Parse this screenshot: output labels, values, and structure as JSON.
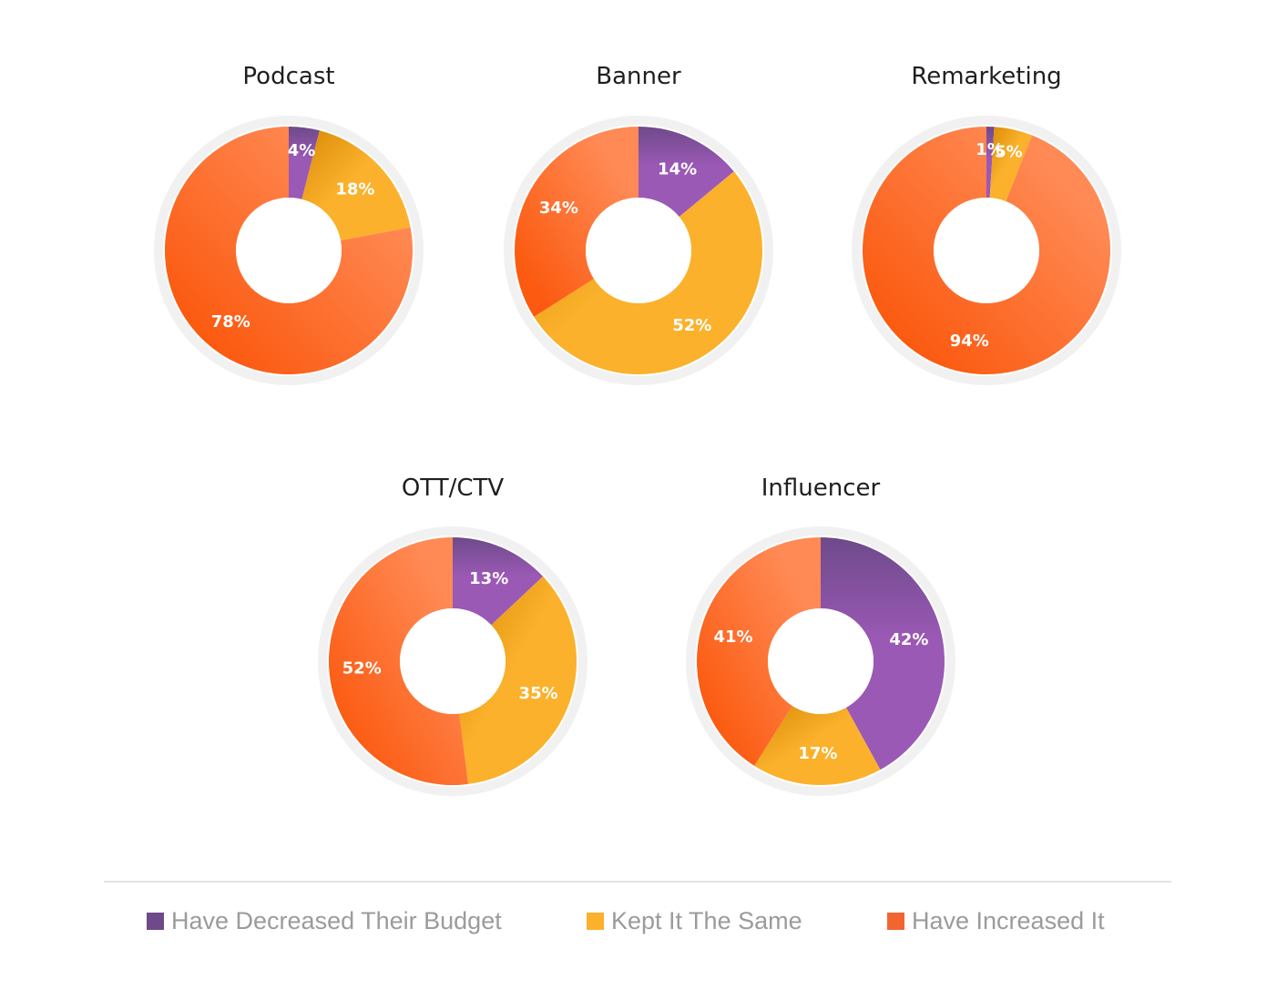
{
  "chart_data": [
    {
      "type": "pie",
      "title": "Podcast",
      "labels": [
        "Have Decreased Their Budget",
        "Kept It The Same",
        "Have Increased It"
      ],
      "values": [
        4,
        18,
        78
      ]
    },
    {
      "type": "pie",
      "title": "Banner",
      "labels": [
        "Have Decreased Their Budget",
        "Kept It The Same",
        "Have Increased It"
      ],
      "values": [
        14,
        52,
        34
      ]
    },
    {
      "type": "pie",
      "title": "Remarketing",
      "labels": [
        "Have Decreased Their Budget",
        "Kept It The Same",
        "Have Increased It"
      ],
      "values": [
        1,
        5,
        94
      ]
    },
    {
      "type": "pie",
      "title": "OTT/CTV",
      "labels": [
        "Have Decreased Their Budget",
        "Kept It The Same",
        "Have Increased It"
      ],
      "values": [
        13,
        35,
        52
      ]
    },
    {
      "type": "pie",
      "title": "Influencer",
      "labels": [
        "Have Decreased Their Budget",
        "Kept It The Same",
        "Have Increased It"
      ],
      "values": [
        42,
        17,
        41
      ]
    }
  ],
  "legend": {
    "items": [
      {
        "label": "Have Decreased Their Budget",
        "color": "#6e4a8a"
      },
      {
        "label": "Kept It The Same",
        "color": "#fbb12b"
      },
      {
        "label": "Have Increased It",
        "color": "#f26530"
      }
    ]
  },
  "colors": {
    "decreased_light": "#9b59b6",
    "decreased_dark": "#6e4a8a",
    "same_light": "#fbb12b",
    "same_dark": "#d88a06",
    "increased_light": "#ff8a55",
    "increased_dark": "#fb5a10",
    "ring": "#f1f1f1"
  }
}
